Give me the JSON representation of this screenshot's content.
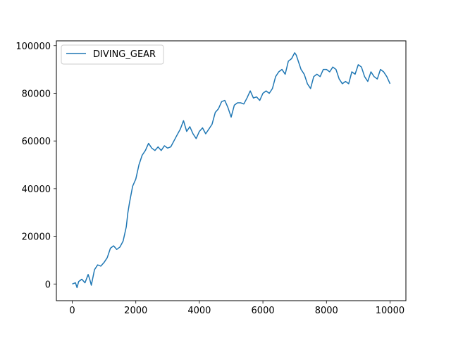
{
  "chart_data": {
    "type": "line",
    "title": "",
    "xlabel": "",
    "ylabel": "",
    "xlim": [
      -500,
      10500
    ],
    "ylim": [
      -7000,
      102000
    ],
    "x_ticks": [
      0,
      2000,
      4000,
      6000,
      8000,
      10000
    ],
    "x_tick_labels": [
      "0",
      "2000",
      "4000",
      "6000",
      "8000",
      "10000"
    ],
    "y_ticks": [
      0,
      20000,
      40000,
      60000,
      80000,
      100000
    ],
    "y_tick_labels": [
      "0",
      "20000",
      "40000",
      "60000",
      "80000",
      "100000"
    ],
    "grid": false,
    "legend_position": "top-left",
    "colors": {
      "series": "#1f77b4",
      "axes": "#000000",
      "background": "#ffffff"
    },
    "series": [
      {
        "name": "DIVING_GEAR",
        "x": [
          0,
          100,
          150,
          200,
          300,
          400,
          500,
          550,
          600,
          700,
          800,
          900,
          1000,
          1100,
          1200,
          1300,
          1400,
          1500,
          1600,
          1700,
          1750,
          1800,
          1900,
          2000,
          2100,
          2200,
          2300,
          2400,
          2500,
          2600,
          2700,
          2800,
          2900,
          3000,
          3100,
          3200,
          3300,
          3400,
          3500,
          3600,
          3700,
          3800,
          3900,
          4000,
          4100,
          4200,
          4300,
          4400,
          4500,
          4600,
          4700,
          4800,
          4900,
          5000,
          5100,
          5200,
          5300,
          5400,
          5500,
          5600,
          5700,
          5800,
          5900,
          6000,
          6100,
          6200,
          6300,
          6400,
          6500,
          6600,
          6700,
          6800,
          6900,
          7000,
          7050,
          7100,
          7200,
          7300,
          7400,
          7500,
          7600,
          7700,
          7800,
          7900,
          8000,
          8100,
          8200,
          8300,
          8400,
          8500,
          8600,
          8700,
          8800,
          8900,
          9000,
          9100,
          9200,
          9300,
          9400,
          9500,
          9600,
          9700,
          9800,
          9900,
          10000
        ],
        "y": [
          0,
          500,
          -1500,
          1000,
          2000,
          500,
          4000,
          2000,
          -500,
          6000,
          8000,
          7500,
          9000,
          11000,
          15000,
          16000,
          14500,
          15500,
          18000,
          24000,
          30000,
          34000,
          41000,
          44000,
          50000,
          54000,
          56000,
          59000,
          57000,
          56000,
          57500,
          56000,
          58000,
          57000,
          57500,
          60000,
          62500,
          65000,
          68500,
          64000,
          66000,
          63000,
          61000,
          64000,
          65500,
          63000,
          65000,
          67000,
          72000,
          73500,
          76500,
          77000,
          74000,
          70000,
          75000,
          76000,
          76000,
          75500,
          78000,
          81000,
          78000,
          78500,
          77000,
          80000,
          81000,
          80000,
          82000,
          87000,
          89000,
          90000,
          88000,
          93500,
          94500,
          97000,
          96000,
          94000,
          90000,
          88000,
          84000,
          82000,
          87000,
          88000,
          87000,
          90000,
          90000,
          89000,
          91000,
          90000,
          86000,
          84000,
          85000,
          84000,
          89000,
          88000,
          92000,
          91000,
          87000,
          85000,
          89000,
          87000,
          86000,
          90000,
          89000,
          87000,
          84000
        ]
      }
    ]
  }
}
